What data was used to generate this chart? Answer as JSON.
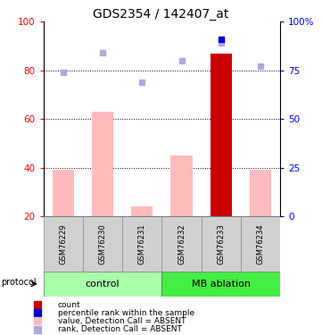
{
  "title": "GDS2354 / 142407_at",
  "samples": [
    "GSM76229",
    "GSM76230",
    "GSM76231",
    "GSM76232",
    "GSM76233",
    "GSM76234"
  ],
  "bar_values": [
    39,
    63,
    24,
    45,
    87,
    39
  ],
  "bar_colors": [
    "#ffbbbb",
    "#ffbbbb",
    "#ffbbbb",
    "#ffbbbb",
    "#cc0000",
    "#ffbbbb"
  ],
  "rank_dots": [
    74,
    84,
    69,
    80,
    89,
    77
  ],
  "rank_dot_color": "#aaaadd",
  "count_dot_index": 4,
  "count_dot_val": 89,
  "count_dot_color": "#0000cc",
  "ylim_left": [
    20,
    100
  ],
  "left_ticks": [
    20,
    40,
    60,
    80,
    100
  ],
  "right_ticks": [
    0,
    25,
    50,
    75,
    100
  ],
  "right_tick_labels": [
    "0",
    "25",
    "50",
    "75",
    "100%"
  ],
  "grid_lines": [
    40,
    60,
    80
  ],
  "control_label": "control",
  "mb_label": "MB ablation",
  "protocol_label": "protocol",
  "legend_labels": [
    "count",
    "percentile rank within the sample",
    "value, Detection Call = ABSENT",
    "rank, Detection Call = ABSENT"
  ],
  "legend_colors": [
    "#cc0000",
    "#0000cc",
    "#ffbbbb",
    "#aaaadd"
  ],
  "title_fontsize": 10
}
